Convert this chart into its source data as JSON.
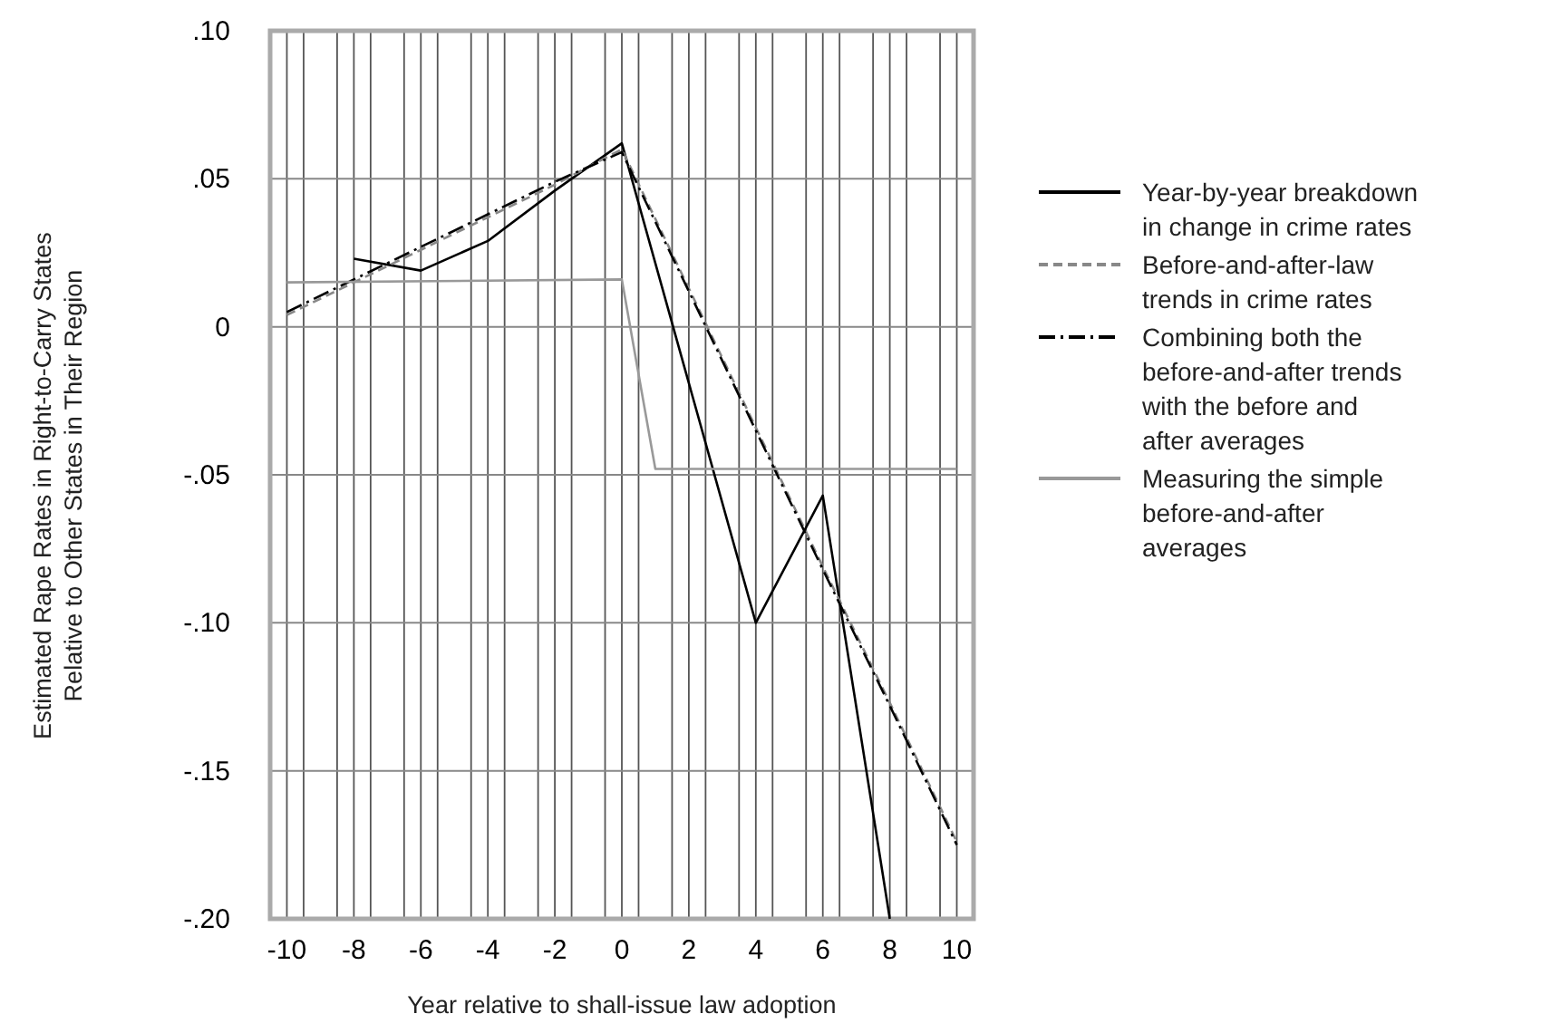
{
  "chart_data": {
    "type": "line",
    "xlabel": "Year relative to shall-issue law adoption",
    "ylabel": "Estimated Rape Rates in Right-to-Carry States\nRelative to Other States in Their Region",
    "xlim": [
      -10.5,
      10.5
    ],
    "xticks": [
      -10,
      {
        "value": -9.5,
        "label": null
      },
      {
        "value": -8.5,
        "label": null
      },
      -8,
      {
        "value": -7.5,
        "label": null
      },
      {
        "value": -6.5,
        "label": null
      },
      -6,
      {
        "value": -5.5,
        "label": null
      },
      {
        "value": -4.5,
        "label": null
      },
      -4,
      {
        "value": -3.5,
        "label": null
      },
      {
        "value": -2.5,
        "label": null
      },
      -2,
      {
        "value": -1.5,
        "label": null
      },
      {
        "value": -0.5,
        "label": null
      },
      0,
      {
        "value": 0.5,
        "label": null
      },
      {
        "value": 1.5,
        "label": null
      },
      2,
      {
        "value": 2.5,
        "label": null
      },
      {
        "value": 3.5,
        "label": null
      },
      4,
      {
        "value": 4.5,
        "label": null
      },
      {
        "value": 5.5,
        "label": null
      },
      6,
      {
        "value": 6.5,
        "label": null
      },
      {
        "value": 7.5,
        "label": null
      },
      8,
      {
        "value": 8.5,
        "label": null
      },
      {
        "value": 9.5,
        "label": null
      },
      10
    ],
    "ylim": [
      -0.2,
      0.1
    ],
    "yticks": [
      {
        "value": -0.2,
        "label": "-.20"
      },
      {
        "value": -0.15,
        "label": "-.15"
      },
      {
        "value": -0.1,
        "label": "-.10"
      },
      {
        "value": -0.05,
        "label": "-.05"
      },
      0,
      {
        "value": 0.05,
        "label": ".05"
      },
      {
        "value": 0.1,
        "label": ".10"
      }
    ],
    "grid": true,
    "legend": "right",
    "marker": "none",
    "series": [
      {
        "name": "Year-by-year breakdown in change in crime rates",
        "color": "#000000",
        "line_style": "solid",
        "x": [
          -8,
          -6,
          -4,
          -2,
          0,
          4,
          6,
          8
        ],
        "values": [
          0.023,
          0.019,
          0.029,
          0.046,
          0.062,
          -0.1,
          -0.057,
          -0.2
        ]
      },
      {
        "name": "Before-and-after-law trends in crime rates",
        "color": "#888888",
        "line_style": "dashed",
        "x": [
          -10,
          -8,
          -6,
          -4,
          -2,
          0,
          2,
          4,
          6,
          8,
          10
        ],
        "values": [
          0.004,
          0.015,
          0.026,
          0.037,
          0.048,
          0.06,
          0.013,
          -0.034,
          -0.081,
          -0.127,
          -0.174
        ]
      },
      {
        "name": "Combining both the before-and-after trends with the before and after averages",
        "color": "#000000",
        "line_style": "dashdot",
        "x": [
          -10,
          -8,
          -6,
          -4,
          -2,
          0,
          2,
          4,
          6,
          8,
          10
        ],
        "values": [
          0.005,
          0.016,
          0.027,
          0.038,
          0.049,
          0.059,
          0.012,
          -0.035,
          -0.082,
          -0.128,
          -0.175
        ]
      },
      {
        "name": "Measuring the simple before-and-after averages",
        "color": "#999999",
        "line_style": "solid",
        "x": [
          -10,
          0,
          1,
          10
        ],
        "values": [
          0.015,
          0.016,
          -0.048,
          -0.048
        ]
      }
    ]
  }
}
